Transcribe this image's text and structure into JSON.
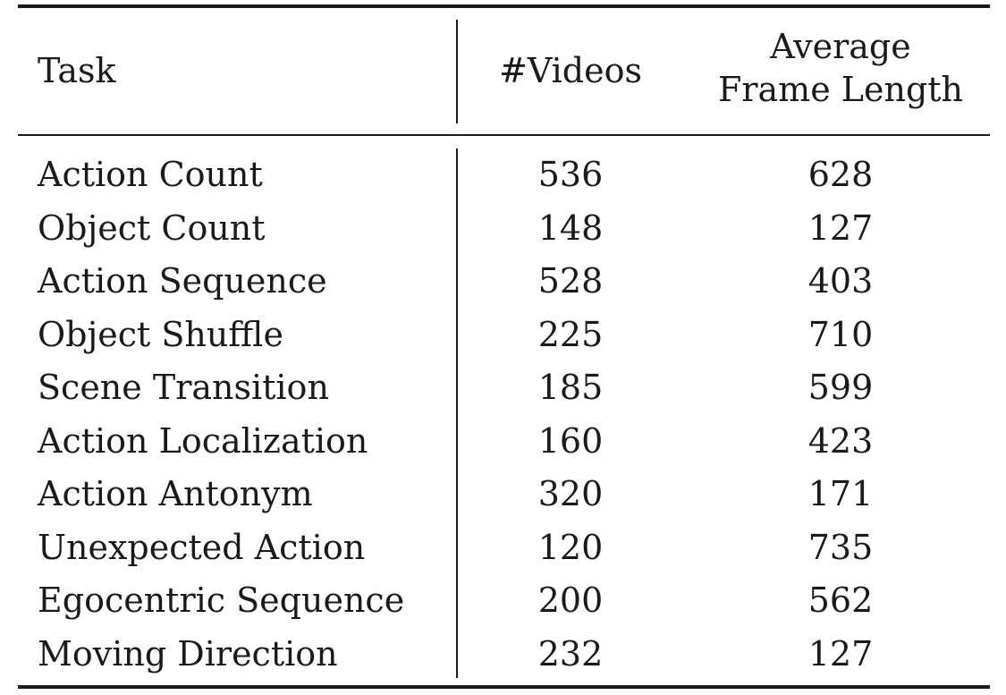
{
  "table": {
    "headers": {
      "task": "Task",
      "videos": "#Videos",
      "frame_line1": "Average",
      "frame_line2": "Frame Length"
    },
    "rows": [
      {
        "task": "Action Count",
        "videos": "536",
        "frame": "628"
      },
      {
        "task": "Object Count",
        "videos": "148",
        "frame": "127"
      },
      {
        "task": "Action Sequence",
        "videos": "528",
        "frame": "403"
      },
      {
        "task": "Object Shuffle",
        "videos": "225",
        "frame": "710"
      },
      {
        "task": "Scene Transition",
        "videos": "185",
        "frame": "599"
      },
      {
        "task": "Action Localization",
        "videos": "160",
        "frame": "423"
      },
      {
        "task": "Action Antonym",
        "videos": "320",
        "frame": "171"
      },
      {
        "task": "Unexpected Action",
        "videos": "120",
        "frame": "735"
      },
      {
        "task": "Egocentric Sequence",
        "videos": "200",
        "frame": "562"
      },
      {
        "task": "Moving Direction",
        "videos": "232",
        "frame": "127"
      }
    ]
  }
}
